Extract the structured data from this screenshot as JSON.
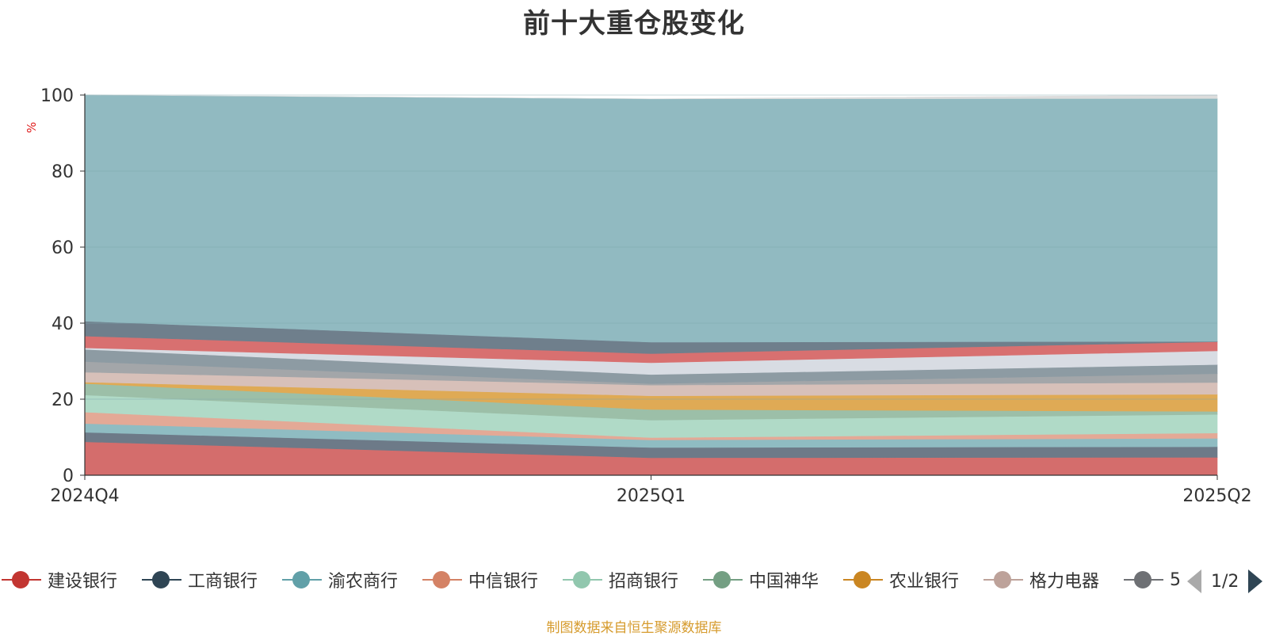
{
  "title": "前十大重仓股变化",
  "unit": "%",
  "source": "制图数据来自恒生聚源数据库",
  "legend": {
    "items": [
      {
        "name": "建设银行",
        "color": "#c23531"
      },
      {
        "name": "工商银行",
        "color": "#2f4554"
      },
      {
        "name": "渝农商行",
        "color": "#61a0a8"
      },
      {
        "name": "中信银行",
        "color": "#d48265"
      },
      {
        "name": "招商银行",
        "color": "#91c7ae"
      },
      {
        "name": "中国神华",
        "color": "#749f83"
      },
      {
        "name": "农业银行",
        "color": "#ca8622"
      },
      {
        "name": "格力电器",
        "color": "#bda29a"
      },
      {
        "name": "5",
        "color": "#6e7074"
      }
    ],
    "page": "1/2"
  },
  "chart_data": {
    "type": "area",
    "stacked": true,
    "categories": [
      "2024Q4",
      "2025Q1",
      "2025Q2"
    ],
    "ylim": [
      0,
      100
    ],
    "yticks": [
      0,
      20,
      40,
      60,
      80,
      100
    ],
    "series": [
      {
        "name": "建设银行",
        "color": "#d46d6c",
        "values": [
          8.8,
          4.6,
          4.7
        ]
      },
      {
        "name": "工商银行",
        "color": "#6d7a88",
        "values": [
          2.5,
          2.7,
          2.8
        ]
      },
      {
        "name": "渝农商行",
        "color": "#8fbcc2",
        "values": [
          2.3,
          2.0,
          2.2
        ]
      },
      {
        "name": "中信银行",
        "color": "#e3a996",
        "values": [
          3.0,
          0.6,
          1.4
        ]
      },
      {
        "name": "招商银行",
        "color": "#b0dac7",
        "values": [
          4.5,
          4.6,
          4.9
        ]
      },
      {
        "name": "中国神华",
        "color": "#9cbfa8",
        "values": [
          3.0,
          2.8,
          0.8
        ]
      },
      {
        "name": "农业银行",
        "color": "#dfaa55",
        "values": [
          0.4,
          3.6,
          4.5
        ]
      },
      {
        "name": "格力电器",
        "color": "#d7c0b9",
        "values": [
          2.6,
          2.8,
          3.1
        ]
      },
      {
        "name": "",
        "color": "#a3a6a9",
        "values": [
          2.8,
          0.4,
          2.3
        ]
      },
      {
        "name": "",
        "color": "#8d9ba3",
        "values": [
          3.2,
          2.4,
          2.4
        ]
      },
      {
        "name": "",
        "color": "#d8dce3",
        "values": [
          0.4,
          3.1,
          3.6
        ]
      },
      {
        "name": "",
        "color": "#d87070",
        "values": [
          3.1,
          2.4,
          2.4
        ]
      },
      {
        "name": "",
        "color": "#6f7f8c",
        "values": [
          3.9,
          3.0,
          0.1
        ]
      },
      {
        "name": "",
        "color": "#91bac1",
        "values": [
          59.5,
          64.0,
          63.9
        ]
      },
      {
        "name": "",
        "color": "#dcdcdc",
        "values": [
          0.0,
          0.0,
          0.9
        ]
      }
    ]
  }
}
